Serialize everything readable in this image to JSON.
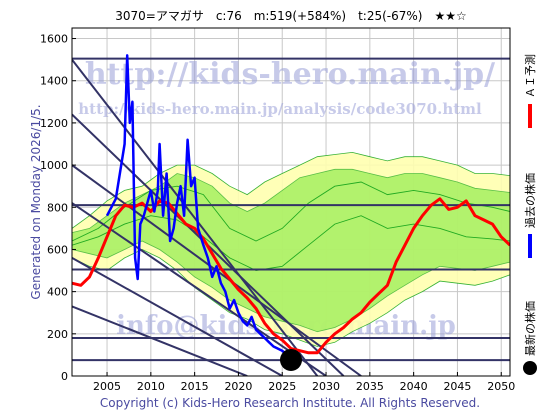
{
  "header": {
    "title": "3070=アマガサ　c:76　m:519(+584%)　t:25(-67%)　★★☆"
  },
  "side_label": "Generated on Monday 2026/1/5.",
  "footer": "Copyright (c) Kids-Hero Research Institute. All Rights Reserved.",
  "watermarks": {
    "url": "http://kids-hero.main.jp/",
    "analysis": "http://kids-hero.main.jp/analysis/code3070.html",
    "email": "info@kids-hero.main.jp"
  },
  "legend": [
    {
      "label": "ＡＩ予測",
      "color": "#ff0000"
    },
    {
      "label": "過去の株価",
      "color": "#0000ff"
    },
    {
      "label": "最新の株価",
      "color": "#000000"
    }
  ],
  "colors": {
    "band_light": "#ffffb0",
    "band_green": "#99ee55",
    "band_line": "#22aa22",
    "prediction": "#ff0000",
    "history": "#0000ff",
    "marker": "#000000",
    "grid": "#c8c8c8",
    "hline": "#333366"
  },
  "chart_data": {
    "type": "line",
    "title": "3070=アマガサ　c:76　m:519(+584%)　t:25(-67%)　★★☆",
    "xlim": [
      2001,
      2051
    ],
    "ylim": [
      0,
      1650
    ],
    "x_ticks": [
      2005,
      2010,
      2015,
      2020,
      2025,
      2030,
      2035,
      2040,
      2045,
      2050
    ],
    "y_ticks": [
      0,
      200,
      400,
      600,
      800,
      1000,
      1200,
      1400,
      1600
    ],
    "grid": true,
    "legend_position": "right-vertical",
    "horizontal_lines": [
      75,
      180,
      505,
      810,
      1505
    ],
    "diagonal_lines": [
      {
        "x": [
          2001,
          2029
        ],
        "y": [
          1500,
          0
        ]
      },
      {
        "x": [
          2001,
          2032
        ],
        "y": [
          1240,
          0
        ]
      },
      {
        "x": [
          2001,
          2034
        ],
        "y": [
          1000,
          0
        ]
      },
      {
        "x": [
          2001,
          2030
        ],
        "y": [
          820,
          0
        ]
      },
      {
        "x": [
          2001,
          2025
        ],
        "y": [
          560,
          0
        ]
      },
      {
        "x": [
          2001,
          2021
        ],
        "y": [
          330,
          0
        ]
      }
    ],
    "band_outer_upper": [
      [
        2001,
        700
      ],
      [
        2003,
        760
      ],
      [
        2005,
        830
      ],
      [
        2007,
        880
      ],
      [
        2009,
        900
      ],
      [
        2011,
        960
      ],
      [
        2013,
        1000
      ],
      [
        2015,
        1000
      ],
      [
        2017,
        960
      ],
      [
        2019,
        900
      ],
      [
        2021,
        860
      ],
      [
        2023,
        920
      ],
      [
        2025,
        960
      ],
      [
        2027,
        1000
      ],
      [
        2029,
        1040
      ],
      [
        2031,
        1050
      ],
      [
        2033,
        1060
      ],
      [
        2035,
        1040
      ],
      [
        2037,
        1020
      ],
      [
        2039,
        1040
      ],
      [
        2041,
        1040
      ],
      [
        2043,
        1020
      ],
      [
        2045,
        1000
      ],
      [
        2047,
        960
      ],
      [
        2049,
        960
      ],
      [
        2051,
        950
      ]
    ],
    "band_outer_lower": [
      [
        2051,
        480
      ],
      [
        2049,
        450
      ],
      [
        2047,
        430
      ],
      [
        2045,
        440
      ],
      [
        2043,
        450
      ],
      [
        2041,
        400
      ],
      [
        2039,
        360
      ],
      [
        2037,
        300
      ],
      [
        2035,
        250
      ],
      [
        2033,
        210
      ],
      [
        2031,
        160
      ],
      [
        2029,
        140
      ],
      [
        2027,
        170
      ],
      [
        2025,
        200
      ],
      [
        2023,
        220
      ],
      [
        2021,
        270
      ],
      [
        2019,
        300
      ],
      [
        2017,
        360
      ],
      [
        2015,
        420
      ],
      [
        2013,
        500
      ],
      [
        2011,
        560
      ],
      [
        2009,
        600
      ],
      [
        2007,
        560
      ],
      [
        2005,
        500
      ],
      [
        2003,
        520
      ],
      [
        2001,
        560
      ]
    ],
    "band_inner_upper": [
      [
        2001,
        680
      ],
      [
        2003,
        700
      ],
      [
        2005,
        760
      ],
      [
        2007,
        820
      ],
      [
        2009,
        860
      ],
      [
        2011,
        900
      ],
      [
        2013,
        960
      ],
      [
        2015,
        940
      ],
      [
        2017,
        900
      ],
      [
        2019,
        820
      ],
      [
        2021,
        780
      ],
      [
        2023,
        820
      ],
      [
        2025,
        880
      ],
      [
        2027,
        940
      ],
      [
        2029,
        960
      ],
      [
        2031,
        980
      ],
      [
        2033,
        980
      ],
      [
        2035,
        960
      ],
      [
        2037,
        940
      ],
      [
        2039,
        960
      ],
      [
        2041,
        960
      ],
      [
        2043,
        940
      ],
      [
        2045,
        920
      ],
      [
        2047,
        890
      ],
      [
        2049,
        880
      ],
      [
        2051,
        870
      ]
    ],
    "band_inner_lower": [
      [
        2051,
        540
      ],
      [
        2049,
        520
      ],
      [
        2047,
        500
      ],
      [
        2045,
        510
      ],
      [
        2043,
        520
      ],
      [
        2041,
        480
      ],
      [
        2039,
        430
      ],
      [
        2037,
        380
      ],
      [
        2035,
        320
      ],
      [
        2033,
        270
      ],
      [
        2031,
        230
      ],
      [
        2029,
        210
      ],
      [
        2027,
        240
      ],
      [
        2025,
        260
      ],
      [
        2023,
        280
      ],
      [
        2021,
        320
      ],
      [
        2019,
        360
      ],
      [
        2017,
        420
      ],
      [
        2015,
        470
      ],
      [
        2013,
        540
      ],
      [
        2011,
        600
      ],
      [
        2009,
        640
      ],
      [
        2007,
        600
      ],
      [
        2005,
        560
      ],
      [
        2003,
        580
      ],
      [
        2001,
        600
      ]
    ],
    "band_inner_lines": [
      [
        [
          2001,
          640
        ],
        [
          2004,
          700
        ],
        [
          2007,
          800
        ],
        [
          2010,
          880
        ],
        [
          2013,
          900
        ],
        [
          2016,
          860
        ],
        [
          2019,
          700
        ],
        [
          2022,
          640
        ],
        [
          2025,
          700
        ],
        [
          2028,
          820
        ],
        [
          2031,
          900
        ],
        [
          2034,
          920
        ],
        [
          2037,
          860
        ],
        [
          2040,
          880
        ],
        [
          2043,
          860
        ],
        [
          2046,
          820
        ],
        [
          2049,
          800
        ],
        [
          2051,
          780
        ]
      ],
      [
        [
          2001,
          620
        ],
        [
          2004,
          660
        ],
        [
          2007,
          720
        ],
        [
          2010,
          760
        ],
        [
          2013,
          740
        ],
        [
          2016,
          660
        ],
        [
          2019,
          560
        ],
        [
          2022,
          500
        ],
        [
          2025,
          520
        ],
        [
          2028,
          620
        ],
        [
          2031,
          720
        ],
        [
          2034,
          760
        ],
        [
          2037,
          700
        ],
        [
          2040,
          720
        ],
        [
          2043,
          700
        ],
        [
          2046,
          660
        ],
        [
          2049,
          650
        ],
        [
          2051,
          640
        ]
      ]
    ],
    "series": [
      {
        "name": "ＡＩ予測",
        "color": "#ff0000",
        "points": [
          [
            2001,
            440
          ],
          [
            2002,
            430
          ],
          [
            2003,
            470
          ],
          [
            2004,
            560
          ],
          [
            2005,
            660
          ],
          [
            2006,
            760
          ],
          [
            2007,
            810
          ],
          [
            2008,
            800
          ],
          [
            2009,
            820
          ],
          [
            2010,
            780
          ],
          [
            2011,
            830
          ],
          [
            2012,
            820
          ],
          [
            2013,
            770
          ],
          [
            2014,
            720
          ],
          [
            2015,
            700
          ],
          [
            2016,
            650
          ],
          [
            2017,
            580
          ],
          [
            2018,
            510
          ],
          [
            2019,
            460
          ],
          [
            2020,
            410
          ],
          [
            2021,
            370
          ],
          [
            2022,
            320
          ],
          [
            2023,
            250
          ],
          [
            2024,
            200
          ],
          [
            2025,
            170
          ],
          [
            2026,
            130
          ],
          [
            2027,
            120
          ],
          [
            2028,
            110
          ],
          [
            2029,
            110
          ],
          [
            2030,
            160
          ],
          [
            2031,
            200
          ],
          [
            2032,
            230
          ],
          [
            2033,
            270
          ],
          [
            2034,
            300
          ],
          [
            2035,
            350
          ],
          [
            2036,
            390
          ],
          [
            2037,
            430
          ],
          [
            2038,
            540
          ],
          [
            2039,
            620
          ],
          [
            2040,
            700
          ],
          [
            2041,
            760
          ],
          [
            2042,
            810
          ],
          [
            2043,
            840
          ],
          [
            2044,
            790
          ],
          [
            2045,
            800
          ],
          [
            2046,
            830
          ],
          [
            2047,
            760
          ],
          [
            2048,
            740
          ],
          [
            2049,
            720
          ],
          [
            2050,
            660
          ],
          [
            2051,
            620
          ]
        ]
      },
      {
        "name": "過去の株価",
        "color": "#0000ff",
        "points": [
          [
            2005,
            760
          ],
          [
            2006,
            840
          ],
          [
            2007,
            1100
          ],
          [
            2007.3,
            1520
          ],
          [
            2007.6,
            1200
          ],
          [
            2007.9,
            1300
          ],
          [
            2008.2,
            560
          ],
          [
            2008.5,
            460
          ],
          [
            2008.8,
            720
          ],
          [
            2009.2,
            760
          ],
          [
            2009.6,
            820
          ],
          [
            2010,
            880
          ],
          [
            2010.4,
            780
          ],
          [
            2010.8,
            880
          ],
          [
            2011,
            1100
          ],
          [
            2011.4,
            760
          ],
          [
            2011.8,
            960
          ],
          [
            2012.2,
            640
          ],
          [
            2012.6,
            700
          ],
          [
            2013,
            820
          ],
          [
            2013.4,
            900
          ],
          [
            2013.8,
            760
          ],
          [
            2014.2,
            1120
          ],
          [
            2014.6,
            900
          ],
          [
            2015,
            940
          ],
          [
            2015.4,
            700
          ],
          [
            2016,
            620
          ],
          [
            2016.5,
            560
          ],
          [
            2017,
            470
          ],
          [
            2017.5,
            520
          ],
          [
            2018,
            440
          ],
          [
            2018.5,
            400
          ],
          [
            2019,
            320
          ],
          [
            2019.5,
            360
          ],
          [
            2020,
            300
          ],
          [
            2020.5,
            260
          ],
          [
            2021,
            240
          ],
          [
            2021.5,
            280
          ],
          [
            2022,
            220
          ],
          [
            2022.5,
            200
          ],
          [
            2023,
            180
          ],
          [
            2023.5,
            160
          ],
          [
            2024,
            140
          ],
          [
            2024.5,
            130
          ],
          [
            2025,
            120
          ],
          [
            2025.5,
            100
          ],
          [
            2026,
            80
          ]
        ]
      }
    ],
    "latest_marker": {
      "x": 2026,
      "y": 76,
      "label": "最新の株価"
    }
  }
}
